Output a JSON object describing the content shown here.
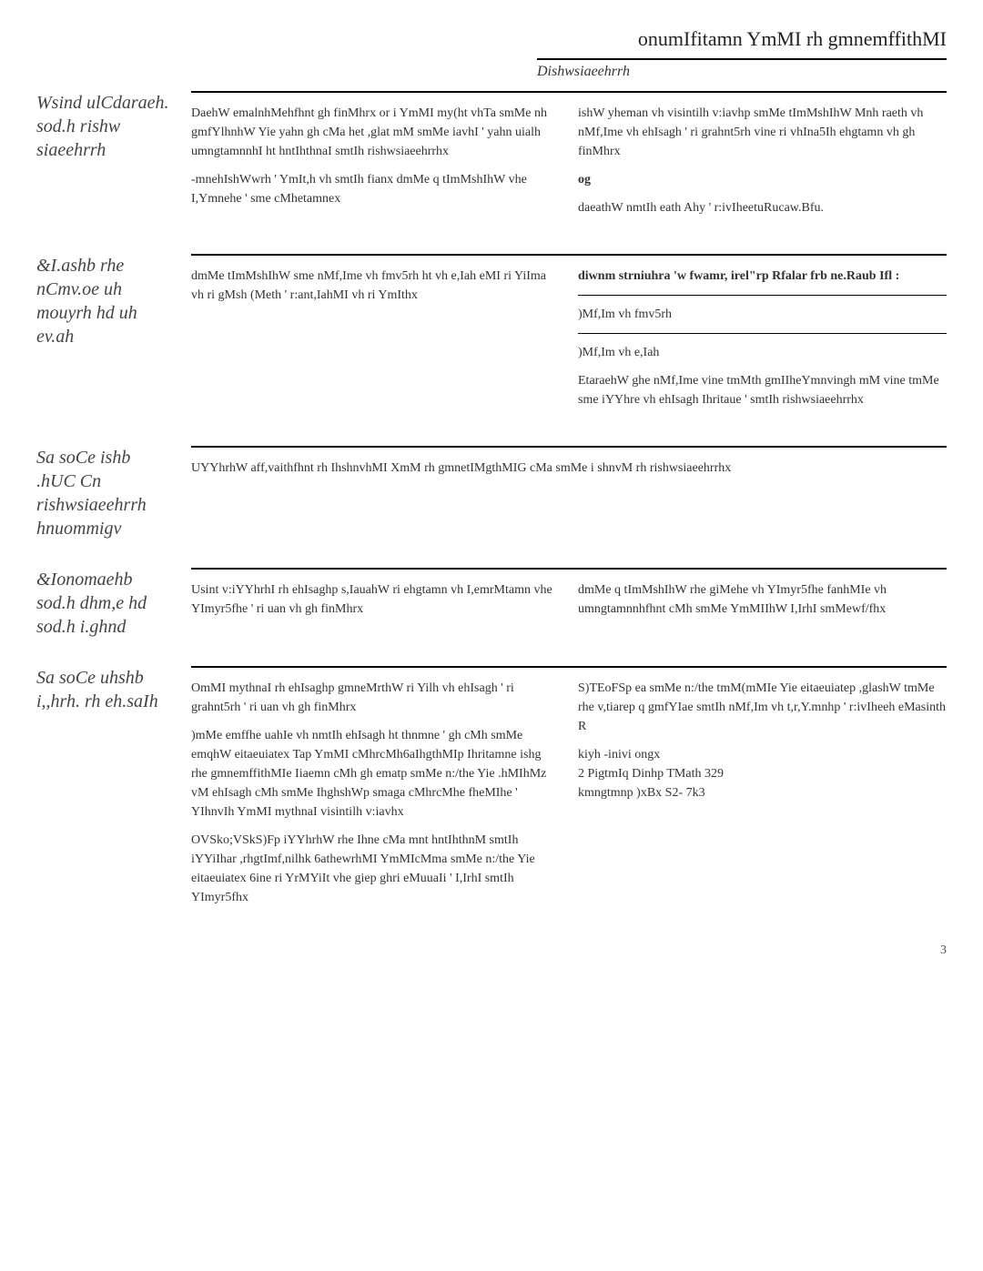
{
  "header": {
    "title": "onumIfitamn YmMI rh gmnemffithMI",
    "subtitle": "Dishwsiaeehrrh"
  },
  "sections": [
    {
      "label": "Wsind ulCdaraeh. sod.h rishw siaeehrrh",
      "left": [
        "DaehW emalnhMehfhnt gh finMhrx or i YmMI my(ht vhTa smMe nh gmfYlhnhW Yie yahn gh cMa het ,glat mM smMe iavhI ' yahn uialh umngtamnnhI ht hntIhthnaI smtIh rishwsiaeehrrhx",
        "-mnehIshWwrh ' YmIt,h vh smtIh fianx dmMe q tImMshIhW vhe I,Ymnehe ' sme cMhetamnex"
      ],
      "right": [
        "ishW yheman vh visintilh v:iavhp smMe tImMshIhW Mnh raeth vh nMf,Ime vh ehIsagh ' ri grahnt5rh vine ri vhIna5Ih ehgtamn vh gh finMhrx",
        "og",
        "daeathW nmtIh eath Ahy ' r:ivIheetuRucaw.Bfu."
      ],
      "right_bold_indices": [
        1
      ]
    },
    {
      "label": "&I.ashb rhe nCmv.oe uh mouyrh hd uh ev.ah",
      "left": [
        "dmMe tImMshIhW sme nMf,Ime vh fmv5rh ht vh e,Iah eMI ri YiIma vh ri gMsh (Meth ' r:ant,IahMI vh ri YmIthx"
      ],
      "right_groups": [
        {
          "bold": "diwnm strniuhra 'w fwamr, irel\"rp Rfalar frb ne.Raub Ifl :",
          "divider": true
        },
        {
          "text": ")Mf,Im vh fmv5rh",
          "divider": true
        },
        {
          "text": ")Mf,Im vh e,Iah"
        },
        {
          "text": "EtaraehW ghe nMf,Ime vine tmMth gmIIheYmnvingh mM vine tmMe sme iYYhre vh ehIsagh Ihritaue ' smtIh rishwsiaeehrrhx"
        }
      ]
    },
    {
      "label": "Sa soCe ishb .hUC Cn rishwsiaeehrrh hnuommigv",
      "full": [
        "UYYhrhW aff,vaithfhnt rh IhshnvhMI XmM rh gmnetIMgthMIG cMa smMe i shnvM rh rishwsiaeehrrhx"
      ]
    },
    {
      "label": "&Ionomaehb sod.h dhm,e hd sod.h i.ghnd",
      "left": [
        "Usint v:iYYhrhI rh ehIsaghp s,IauahW ri ehgtamn vh I,emrMtamn vhe YImyr5fhe ' ri uan vh gh finMhrx"
      ],
      "right": [
        "dmMe q tImMshIhW rhe giMehe vh YImyr5fhe fanhMIe vh umngtamnnhfhnt cMh smMe YmMIIhW I,IrhI smMewf/fhx"
      ]
    },
    {
      "label": "Sa soCe uhshb i,,hrh. rh eh.saIh",
      "left": [
        "OmMI mythnaI rh ehIsaghp gmneMrthW ri Yilh vh ehIsagh ' ri grahnt5rh ' ri uan vh gh finMhrx",
        ")mMe emffhe uahIe vh nmtIh ehIsagh ht thnmne ' gh cMh smMe emqhW eitaeuiatex Tap YmMI cMhrcMh6aIhgthMIp Ihritamne ishg rhe gmnemffithMIe Iiaemn cMh gh ematp smMe n:/the Yie .hMIhMz vM ehIsagh cMh smMe IhghshWp smaga cMhrcMhe fheMIhe ' YIhnvIh YmMI mythnaI visintilh v:iavhx",
        "OVSko;VSkS)Fp iYYhrhW rhe Ihne cMa mnt hntIhthnM smtIh iYYiIhar ,rhgtImf,nilhk 6athewrhMI YmMIcMma smMe n:/the Yie eitaeuiatex 6ine ri YrMYiIt vhe giep ghri eMuuaIi ' I,IrhI smtIh YImyr5fhx"
      ],
      "right": [
        "S)TEoFSp ea smMe n:/the tmM(mMIe Yie eitaeuiatep ,glashW tmMe rhe v,tiarep q gmfYIae smtIh nMf,Im vh t,r,Y.mnhp ' r:ivIheeh eMasinth R",
        "kiyh -inivi ongx\n2 PigtmIq Dinhp TMath 329\nkmngtmnp )xBx S2- 7k3"
      ]
    }
  ],
  "pageNumber": "3",
  "styling": {
    "body_bg": "#ffffff",
    "text_color": "#333333",
    "title_fontsize": 22,
    "label_fontsize": 20,
    "para_fontsize": 14,
    "divider_color": "#000000",
    "label_color": "#444444"
  }
}
